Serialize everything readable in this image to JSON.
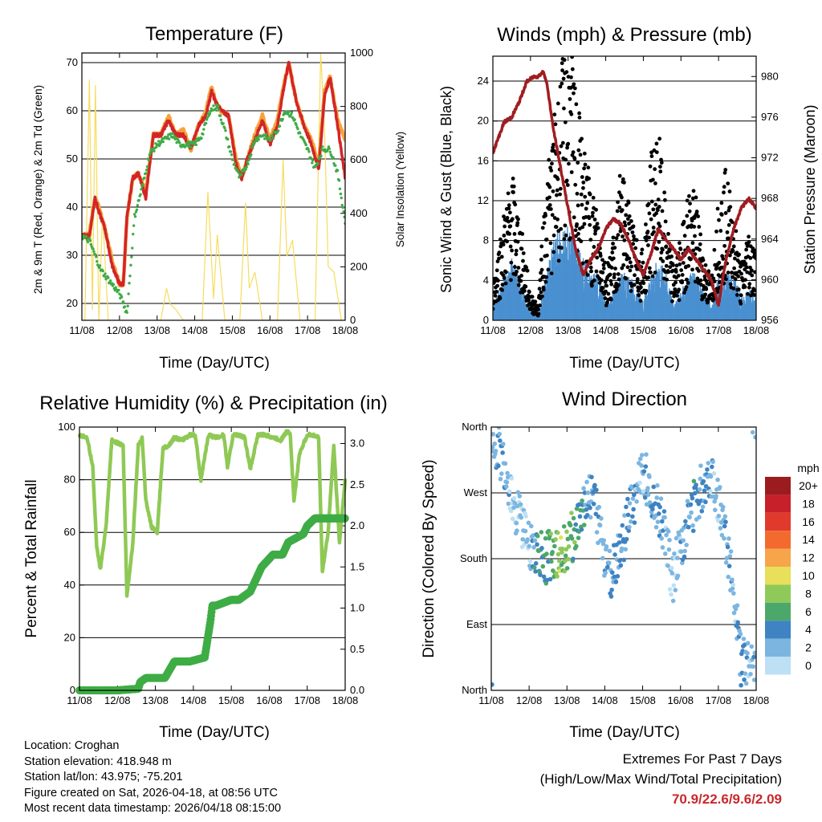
{
  "temperature_panel": {
    "title": "Temperature (F)",
    "ylabel_left": "2m & 9m T (Red, Orange) & 2m Td (Green)",
    "ylabel_right": "Solar Insolation (Yellow)",
    "xlabel": "Time (Day/UTC)"
  },
  "wind_panel": {
    "title": "Winds (mph) & Pressure (mb)",
    "ylabel_left": "Sonic Wind & Gust (Blue, Black)",
    "ylabel_right": "Station Pressure (Maroon)",
    "xlabel": "Time (Day/UTC)"
  },
  "rh_panel": {
    "title": "Relative Humidity (%) & Precipitation (in)",
    "ylabel_left": "Percent & Total Rainfall",
    "xlabel": "Time (Day/UTC)"
  },
  "direction_panel": {
    "title": "Wind Direction",
    "ylabel_left": "Direction (Colored By Speed)",
    "xlabel": "Time (Day/UTC)",
    "legend_title": "mph",
    "legend_labels": [
      "20+",
      "18",
      "16",
      "14",
      "12",
      "10",
      "8",
      "6",
      "4",
      "2",
      "0"
    ],
    "legend_colors": [
      "#9b1c1f",
      "#c6202a",
      "#e13a2c",
      "#f26a2e",
      "#f7a54a",
      "#e8df5a",
      "#8fc95a",
      "#4ca86a",
      "#3f83c2",
      "#7cb6e0",
      "#bde0f4"
    ]
  },
  "station": {
    "location": "Location: Croghan",
    "elevation": "Station elevation: 418.948 m",
    "latlon": "Station lat/lon: 43.975; -75.201",
    "created": "Figure created on Sat, 2026-04-18, at 08:56 UTC",
    "recent": "Most recent data timestamp: 2026/04/18 08:15:00"
  },
  "extremes": {
    "line1": "Extremes For Past 7 Days",
    "line2": "(High/Low/Max Wind/Total Precipitation)",
    "values": "70.9/22.6/9.6/2.09"
  },
  "chart_data": [
    {
      "id": "temperature",
      "type": "line",
      "title": "Temperature (F)",
      "xlabel": "Time (Day/UTC)",
      "ylabel": "2m & 9m T (Red, Orange) & 2m Td (Green)",
      "y2label": "Solar Insolation (Yellow)",
      "x_ticks": [
        "11/08",
        "12/08",
        "13/08",
        "14/08",
        "15/08",
        "16/08",
        "17/08",
        "18/08"
      ],
      "xlim": [
        0,
        7
      ],
      "ylim": [
        16.5,
        72
      ],
      "y_ticks": [
        20,
        30,
        40,
        50,
        60,
        70
      ],
      "y2lim": [
        0,
        1000
      ],
      "y2_ticks": [
        0,
        200,
        400,
        600,
        800,
        1000
      ],
      "series": [
        {
          "name": "9m T",
          "color": "#f5a33b",
          "x": [
            0,
            0.2,
            0.35,
            0.45,
            0.6,
            0.8,
            1.0,
            1.1,
            1.2,
            1.35,
            1.5,
            1.7,
            1.9,
            2.1,
            2.3,
            2.5,
            2.7,
            2.9,
            3.1,
            3.3,
            3.45,
            3.55,
            3.7,
            3.9,
            4.1,
            4.25,
            4.4,
            4.6,
            4.8,
            5.0,
            5.2,
            5.35,
            5.5,
            5.7,
            5.9,
            6.1,
            6.3,
            6.45,
            6.6,
            6.8,
            7.0
          ],
          "values": [
            34,
            34.5,
            42,
            40,
            36,
            29,
            24,
            24,
            38,
            46,
            47,
            43,
            55,
            55,
            59,
            55,
            56,
            52,
            57,
            60,
            65,
            62,
            60,
            59,
            50,
            46,
            50,
            55,
            59,
            54,
            58,
            65,
            70,
            62,
            57,
            54,
            49,
            64,
            67,
            58,
            54
          ]
        },
        {
          "name": "2m T",
          "color": "#d32527",
          "x": [
            0,
            0.2,
            0.35,
            0.45,
            0.6,
            0.8,
            1.0,
            1.1,
            1.2,
            1.35,
            1.5,
            1.7,
            1.9,
            2.1,
            2.3,
            2.5,
            2.7,
            2.9,
            3.1,
            3.3,
            3.45,
            3.55,
            3.7,
            3.9,
            4.1,
            4.25,
            4.4,
            4.6,
            4.8,
            5.0,
            5.2,
            5.35,
            5.5,
            5.7,
            5.9,
            6.1,
            6.3,
            6.45,
            6.6,
            6.8,
            7.0
          ],
          "values": [
            34,
            34,
            42,
            39,
            36,
            28,
            24,
            24,
            38,
            46,
            47,
            42,
            55,
            55,
            58,
            55,
            55,
            52,
            57,
            59,
            64,
            62,
            60,
            59,
            49,
            46,
            50,
            54,
            58,
            53,
            57,
            64,
            70,
            62,
            57,
            53,
            48,
            63,
            67,
            57,
            46
          ]
        },
        {
          "name": "2m Td",
          "color": "#3fac46",
          "x": [
            0,
            0.2,
            0.35,
            0.5,
            0.7,
            0.9,
            1.0,
            1.2,
            1.4,
            1.6,
            1.8,
            2.0,
            2.2,
            2.4,
            2.6,
            2.8,
            3.0,
            3.2,
            3.4,
            3.6,
            3.8,
            4.0,
            4.2,
            4.4,
            4.6,
            4.8,
            5.0,
            5.2,
            5.4,
            5.6,
            5.8,
            6.0,
            6.2,
            6.4,
            6.6,
            6.8,
            7.0
          ],
          "values": [
            34,
            33,
            30,
            27,
            25,
            23,
            22,
            18,
            38,
            44,
            51,
            53,
            54,
            55,
            53,
            53,
            53,
            55,
            60,
            61,
            56,
            50,
            46,
            49,
            54,
            55,
            54,
            56,
            60,
            59,
            55,
            52,
            48,
            52,
            52,
            47,
            37
          ]
        },
        {
          "name": "Solar Insolation",
          "axis": "y2",
          "color": "#f6dc5e",
          "x": [
            0.08,
            0.2,
            0.28,
            0.36,
            0.45,
            0.55,
            0.7,
            0.9,
            1.1,
            1.3,
            1.4,
            1.6,
            1.8,
            2.1,
            2.25,
            2.35,
            2.5,
            2.7,
            3.2,
            3.35,
            3.5,
            3.6,
            3.8,
            4.2,
            4.35,
            4.45,
            4.6,
            4.8,
            5.2,
            5.35,
            5.45,
            5.6,
            5.8,
            6.2,
            6.35,
            6.45,
            6.55,
            6.7,
            6.9
          ],
          "values": [
            0,
            900,
            40,
            880,
            0,
            400,
            0,
            0,
            0,
            0,
            0,
            0,
            0,
            0,
            120,
            60,
            40,
            0,
            0,
            480,
            80,
            320,
            0,
            0,
            440,
            120,
            180,
            0,
            0,
            600,
            240,
            300,
            0,
            0,
            1000,
            720,
            200,
            180,
            0
          ]
        }
      ]
    },
    {
      "id": "winds",
      "type": "scatter",
      "title": "Winds (mph) & Pressure (mb)",
      "xlabel": "Time (Day/UTC)",
      "ylabel": "Sonic Wind & Gust (Blue, Black)",
      "y2label": "Station Pressure (Maroon)",
      "x_ticks": [
        "11/08",
        "12/08",
        "13/08",
        "14/08",
        "15/08",
        "16/08",
        "17/08",
        "18/08"
      ],
      "xlim": [
        0,
        7
      ],
      "ylim": [
        0,
        26.5
      ],
      "y_ticks": [
        0,
        4,
        8,
        12,
        16,
        20,
        24
      ],
      "y2lim": [
        956,
        982
      ],
      "y2_ticks": [
        956,
        960,
        964,
        968,
        972,
        976,
        980
      ],
      "series": [
        {
          "name": "Gust",
          "color": "#000000",
          "x": [
            0,
            0.3,
            0.5,
            0.8,
            1.0,
            1.2,
            1.4,
            1.6,
            1.8,
            2.0,
            2.2,
            2.4,
            2.6,
            2.8,
            3.0,
            3.2,
            3.4,
            3.6,
            3.8,
            4.0,
            4.2,
            4.4,
            4.6,
            4.8,
            5.0,
            5.2,
            5.4,
            5.6,
            5.8,
            6.0,
            6.2,
            6.4,
            6.6,
            6.8,
            7.0
          ],
          "values": [
            3,
            8,
            11,
            6,
            2,
            1,
            10,
            14,
            18,
            21,
            17,
            13,
            10,
            8,
            4,
            6,
            11,
            9,
            6,
            5,
            12,
            14,
            8,
            4,
            6,
            10,
            9,
            5,
            3,
            9,
            11,
            8,
            4,
            7,
            5
          ]
        },
        {
          "name": "Sonic Wind",
          "color": "#4a90d0",
          "x": [
            0,
            0.3,
            0.5,
            0.8,
            1.0,
            1.2,
            1.4,
            1.6,
            1.8,
            2.0,
            2.2,
            2.4,
            2.6,
            2.8,
            3.0,
            3.2,
            3.4,
            3.6,
            3.8,
            4.0,
            4.2,
            4.4,
            4.6,
            4.8,
            5.0,
            5.2,
            5.4,
            5.6,
            5.8,
            6.0,
            6.2,
            6.4,
            6.6,
            6.8,
            7.0
          ],
          "values": [
            1,
            3,
            4,
            2,
            0.5,
            0.3,
            3,
            5,
            6,
            6,
            5,
            4,
            3,
            3,
            1,
            2,
            3,
            3,
            2,
            1.5,
            3,
            4,
            3,
            1,
            2,
            3,
            3,
            2,
            1,
            3,
            3,
            3,
            1.5,
            2,
            1.5
          ]
        },
        {
          "name": "Station Pressure",
          "axis": "y2",
          "color": "#a01d22",
          "x": [
            0,
            0.15,
            0.3,
            0.5,
            0.7,
            0.9,
            1.1,
            1.2,
            1.35,
            1.45,
            1.6,
            1.8,
            2.0,
            2.2,
            2.4,
            2.6,
            2.8,
            3.0,
            3.2,
            3.4,
            3.6,
            3.8,
            4.0,
            4.2,
            4.4,
            4.6,
            4.8,
            5.0,
            5.2,
            5.4,
            5.6,
            5.8,
            6.0,
            6.2,
            6.4,
            6.6,
            6.8,
            7.0
          ],
          "values": [
            972.5,
            974,
            975.5,
            976,
            977.5,
            979.5,
            980,
            980,
            980.5,
            979,
            975,
            971,
            967,
            963,
            960.5,
            962,
            963,
            965,
            966,
            965.5,
            964,
            962,
            960.5,
            962.5,
            965,
            964,
            963,
            962,
            963,
            962,
            961,
            960,
            957.5,
            962,
            965,
            967,
            968,
            967
          ]
        }
      ]
    },
    {
      "id": "humidity_precip",
      "type": "line",
      "title": "Relative Humidity (%) & Precipitation (in)",
      "xlabel": "Time (Day/UTC)",
      "ylabel": "Percent & Total Rainfall",
      "x_ticks": [
        "11/08",
        "12/08",
        "13/08",
        "14/08",
        "15/08",
        "16/08",
        "17/08",
        "18/08"
      ],
      "xlim": [
        0,
        7
      ],
      "ylim": [
        0,
        100
      ],
      "y_ticks": [
        0,
        20,
        40,
        60,
        80,
        100
      ],
      "y2lim": [
        0,
        3.2
      ],
      "y2_ticks": [
        0.0,
        0.5,
        1.0,
        1.5,
        2.0,
        2.5,
        3.0
      ],
      "series": [
        {
          "name": "Relative Humidity",
          "color": "#8fc955",
          "x": [
            0,
            0.2,
            0.35,
            0.45,
            0.55,
            0.7,
            0.85,
            1.0,
            1.15,
            1.25,
            1.4,
            1.55,
            1.65,
            1.75,
            1.9,
            2.05,
            2.2,
            2.35,
            2.5,
            2.7,
            2.9,
            3.05,
            3.2,
            3.4,
            3.6,
            3.8,
            3.9,
            4.05,
            4.2,
            4.35,
            4.5,
            4.7,
            4.9,
            5.1,
            5.3,
            5.45,
            5.55,
            5.65,
            5.8,
            6.0,
            6.15,
            6.3,
            6.4,
            6.55,
            6.7,
            6.85,
            7.0
          ],
          "values": [
            97,
            96,
            85,
            55,
            46,
            62,
            95,
            94,
            93,
            36,
            55,
            93,
            96,
            72,
            62,
            60,
            92,
            93,
            96,
            95,
            97,
            97,
            80,
            97,
            96,
            97,
            85,
            97,
            97,
            96,
            84,
            97,
            97,
            96,
            95,
            98,
            98,
            72,
            90,
            97,
            97,
            96,
            45,
            60,
            93,
            56,
            80
          ]
        },
        {
          "name": "Total Rainfall",
          "axis": "y2",
          "color": "#3fac46",
          "x": [
            0,
            1.0,
            1.55,
            1.6,
            1.75,
            2.05,
            2.25,
            2.5,
            2.7,
            2.9,
            3.3,
            3.45,
            3.5,
            3.6,
            4.0,
            4.2,
            4.5,
            4.8,
            5.1,
            5.35,
            5.5,
            5.9,
            6.0,
            6.2,
            7.0
          ],
          "values": [
            0,
            0,
            0.02,
            0.1,
            0.15,
            0.15,
            0.15,
            0.35,
            0.35,
            0.35,
            0.4,
            0.84,
            1.03,
            1.03,
            1.1,
            1.1,
            1.2,
            1.5,
            1.65,
            1.65,
            1.8,
            1.9,
            2.0,
            2.09,
            2.09
          ]
        }
      ]
    },
    {
      "id": "wind_direction",
      "type": "scatter",
      "title": "Wind Direction",
      "xlabel": "Time (Day/UTC)",
      "ylabel": "Direction (Colored By Speed)",
      "x_ticks": [
        "11/08",
        "12/08",
        "13/08",
        "14/08",
        "15/08",
        "16/08",
        "17/08",
        "18/08"
      ],
      "xlim": [
        0,
        7
      ],
      "ylim": [
        0,
        360
      ],
      "y_ticks": [
        0,
        90,
        180,
        270,
        360
      ],
      "y_tick_labels": [
        "North",
        "East",
        "South",
        "West",
        "North"
      ],
      "colorbar": {
        "label": "mph",
        "levels": [
          "20+",
          "18",
          "16",
          "14",
          "12",
          "10",
          "8",
          "6",
          "4",
          "2",
          "0"
        ]
      },
      "series": [
        {
          "name": "Wind Direction",
          "x": [
            0.1,
            0.2,
            0.3,
            0.4,
            0.5,
            0.6,
            1.0,
            1.2,
            1.4,
            1.6,
            1.8,
            2.0,
            2.2,
            2.4,
            2.6,
            2.8,
            3.0,
            3.2,
            3.4,
            3.6,
            3.8,
            4.0,
            4.2,
            4.4,
            4.6,
            4.8,
            5.0,
            5.2,
            5.4,
            5.6,
            5.8,
            6.0,
            6.2,
            6.4,
            6.6,
            6.8,
            7.0
          ],
          "values": [
            340,
            330,
            310,
            295,
            270,
            250,
            200,
            185,
            180,
            185,
            190,
            200,
            215,
            250,
            270,
            240,
            180,
            160,
            190,
            230,
            260,
            300,
            280,
            250,
            210,
            150,
            200,
            230,
            260,
            280,
            300,
            260,
            200,
            150,
            40,
            30,
            20
          ],
          "speeds": [
            2,
            3,
            3,
            2,
            2,
            1,
            1,
            5,
            5,
            6,
            8,
            7,
            6,
            4,
            3,
            2,
            3,
            4,
            3,
            3,
            2,
            2,
            3,
            3,
            2,
            1,
            2,
            3,
            4,
            3,
            2,
            2,
            3,
            2,
            3,
            2,
            2
          ]
        }
      ]
    }
  ]
}
